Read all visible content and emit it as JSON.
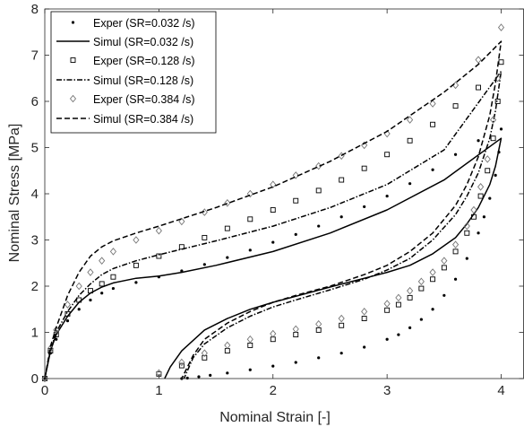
{
  "chart_data": {
    "type": "scatter",
    "title": "",
    "xlabel": "Nominal Strain [-]",
    "ylabel": "Nominal Stress [MPa]",
    "xlim": [
      0,
      4.2
    ],
    "ylim": [
      0,
      8
    ],
    "xticks": [
      "0",
      "1",
      "2",
      "3",
      "4"
    ],
    "yticks": [
      "0",
      "1",
      "2",
      "3",
      "4",
      "5",
      "6",
      "7",
      "8"
    ],
    "grid": false,
    "legend_position": "top-left",
    "series": [
      {
        "name": "Exper (SR=0.032 /s)",
        "marker": "dot",
        "color": "#000000",
        "x": [
          0,
          0.05,
          0.1,
          0.2,
          0.3,
          0.4,
          0.5,
          0.6,
          0.8,
          1.0,
          1.2,
          1.4,
          1.6,
          1.8,
          2.0,
          2.2,
          2.4,
          2.6,
          2.8,
          3.0,
          3.2,
          3.4,
          3.6,
          3.8,
          4.0,
          3.98,
          3.95,
          3.9,
          3.85,
          3.8,
          3.7,
          3.6,
          3.5,
          3.4,
          3.3,
          3.2,
          3.1,
          3.0,
          2.8,
          2.6,
          2.4,
          2.2,
          2.0,
          1.8,
          1.6,
          1.45,
          1.35,
          1.25,
          1.2
        ],
        "y": [
          0,
          0.55,
          0.85,
          1.25,
          1.5,
          1.7,
          1.85,
          1.95,
          2.08,
          2.2,
          2.33,
          2.47,
          2.62,
          2.78,
          2.95,
          3.12,
          3.3,
          3.5,
          3.72,
          3.95,
          4.22,
          4.52,
          4.85,
          5.15,
          5.4,
          4.9,
          4.4,
          3.9,
          3.5,
          3.15,
          2.6,
          2.15,
          1.8,
          1.5,
          1.28,
          1.1,
          0.95,
          0.85,
          0.68,
          0.55,
          0.45,
          0.35,
          0.27,
          0.19,
          0.12,
          0.07,
          0.04,
          0.01,
          0
        ]
      },
      {
        "name": "Simul (SR=0.032 /s)",
        "line": "solid",
        "color": "#000000",
        "x": [
          0,
          0.05,
          0.1,
          0.2,
          0.3,
          0.4,
          0.5,
          0.6,
          0.8,
          1.0,
          1.2,
          1.5,
          2.0,
          2.5,
          3.0,
          3.5,
          4.0,
          3.95,
          3.9,
          3.8,
          3.7,
          3.6,
          3.4,
          3.2,
          3.0,
          2.8,
          2.5,
          2.2,
          2.0,
          1.8,
          1.6,
          1.4,
          1.2,
          1.1,
          1.05
        ],
        "y": [
          0,
          0.6,
          0.95,
          1.35,
          1.65,
          1.85,
          1.98,
          2.07,
          2.17,
          2.22,
          2.3,
          2.45,
          2.75,
          3.15,
          3.65,
          4.3,
          5.2,
          4.6,
          4.2,
          3.7,
          3.35,
          3.05,
          2.7,
          2.45,
          2.3,
          2.17,
          1.98,
          1.78,
          1.65,
          1.5,
          1.3,
          1.05,
          0.6,
          0.25,
          0
        ]
      },
      {
        "name": "Exper (SR=0.128 /s)",
        "marker": "square",
        "color": "#000000",
        "x": [
          0,
          0.05,
          0.1,
          0.2,
          0.3,
          0.4,
          0.5,
          0.6,
          0.8,
          1.0,
          1.2,
          1.4,
          1.6,
          1.8,
          2.0,
          2.2,
          2.4,
          2.6,
          2.8,
          3.0,
          3.2,
          3.4,
          3.6,
          3.8,
          4.0,
          3.97,
          3.93,
          3.88,
          3.82,
          3.76,
          3.7,
          3.6,
          3.5,
          3.4,
          3.3,
          3.2,
          3.1,
          3.0,
          2.8,
          2.6,
          2.4,
          2.2,
          2.0,
          1.8,
          1.6,
          1.4,
          1.2,
          1.0
        ],
        "y": [
          0,
          0.6,
          0.95,
          1.4,
          1.7,
          1.9,
          2.05,
          2.2,
          2.45,
          2.65,
          2.85,
          3.05,
          3.25,
          3.45,
          3.65,
          3.85,
          4.07,
          4.3,
          4.55,
          4.85,
          5.15,
          5.5,
          5.9,
          6.3,
          6.85,
          6.0,
          5.2,
          4.5,
          3.95,
          3.5,
          3.15,
          2.75,
          2.4,
          2.15,
          1.95,
          1.75,
          1.6,
          1.48,
          1.3,
          1.15,
          1.05,
          0.95,
          0.85,
          0.72,
          0.6,
          0.45,
          0.28,
          0.1
        ]
      },
      {
        "name": "Simul (SR=0.128 /s)",
        "line": "dashdot",
        "color": "#000000",
        "x": [
          0,
          0.05,
          0.1,
          0.2,
          0.3,
          0.4,
          0.5,
          0.6,
          0.8,
          1.0,
          1.5,
          2.0,
          2.5,
          3.0,
          3.5,
          4.0,
          3.95,
          3.9,
          3.8,
          3.7,
          3.6,
          3.4,
          3.2,
          3.0,
          2.8,
          2.5,
          2.2,
          2.0,
          1.8,
          1.6,
          1.4,
          1.3,
          1.22
        ],
        "y": [
          0,
          0.62,
          1.0,
          1.45,
          1.8,
          2.05,
          2.25,
          2.38,
          2.55,
          2.68,
          2.98,
          3.3,
          3.7,
          4.2,
          4.95,
          6.65,
          5.8,
          5.2,
          4.45,
          3.95,
          3.55,
          3.0,
          2.6,
          2.35,
          2.15,
          1.92,
          1.7,
          1.55,
          1.35,
          1.1,
          0.75,
          0.45,
          0
        ]
      },
      {
        "name": "Exper (SR=0.384 /s)",
        "marker": "diamond",
        "color": "#777777",
        "x": [
          0,
          0.05,
          0.1,
          0.2,
          0.3,
          0.4,
          0.5,
          0.6,
          0.8,
          1.0,
          1.2,
          1.4,
          1.6,
          1.8,
          2.0,
          2.2,
          2.4,
          2.6,
          2.8,
          3.0,
          3.2,
          3.4,
          3.6,
          3.8,
          4.0,
          3.97,
          3.93,
          3.88,
          3.82,
          3.76,
          3.7,
          3.6,
          3.5,
          3.4,
          3.3,
          3.2,
          3.1,
          3.0,
          2.8,
          2.6,
          2.4,
          2.2,
          2.0,
          1.8,
          1.6,
          1.4,
          1.2,
          1.0
        ],
        "y": [
          0,
          0.65,
          1.05,
          1.6,
          2.0,
          2.3,
          2.55,
          2.75,
          3.0,
          3.2,
          3.4,
          3.6,
          3.8,
          4.0,
          4.2,
          4.4,
          4.6,
          4.82,
          5.05,
          5.3,
          5.6,
          5.95,
          6.35,
          6.9,
          7.6,
          6.5,
          5.6,
          4.75,
          4.15,
          3.65,
          3.3,
          2.9,
          2.55,
          2.3,
          2.1,
          1.9,
          1.75,
          1.62,
          1.45,
          1.3,
          1.18,
          1.07,
          0.97,
          0.85,
          0.72,
          0.55,
          0.35,
          0.12
        ]
      },
      {
        "name": "Simul (SR=0.384 /s)",
        "line": "dashed",
        "color": "#000000",
        "x": [
          0,
          0.05,
          0.1,
          0.2,
          0.3,
          0.4,
          0.5,
          0.6,
          0.8,
          1.0,
          1.5,
          2.0,
          2.5,
          3.0,
          3.5,
          3.8,
          4.0,
          3.95,
          3.9,
          3.8,
          3.7,
          3.6,
          3.4,
          3.2,
          3.0,
          2.8,
          2.5,
          2.2,
          2.0,
          1.8,
          1.6,
          1.4,
          1.3,
          1.2
        ],
        "y": [
          0,
          0.7,
          1.1,
          1.8,
          2.3,
          2.65,
          2.85,
          2.98,
          3.15,
          3.3,
          3.7,
          4.15,
          4.7,
          5.35,
          6.2,
          6.8,
          7.3,
          6.4,
          5.7,
          4.8,
          4.2,
          3.75,
          3.15,
          2.75,
          2.45,
          2.25,
          2.0,
          1.8,
          1.65,
          1.45,
          1.2,
          0.85,
          0.5,
          0
        ]
      }
    ]
  }
}
